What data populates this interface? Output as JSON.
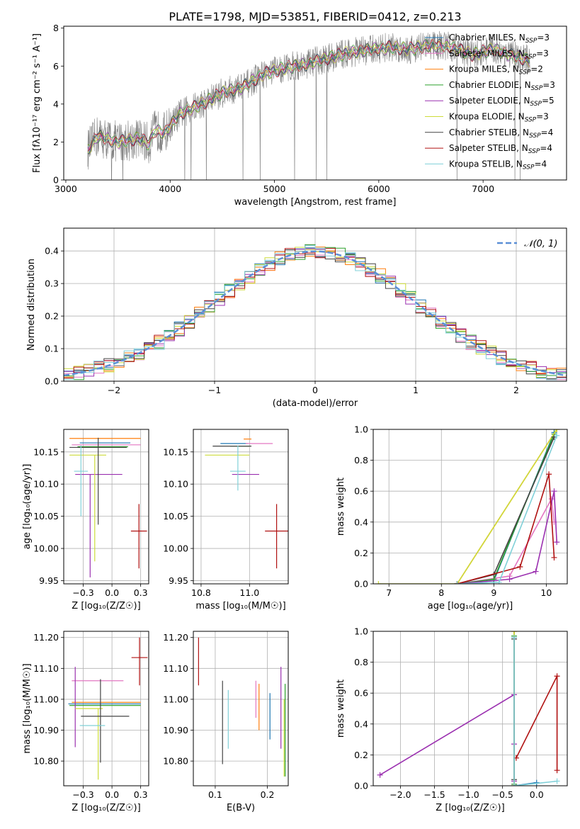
{
  "figure": {
    "title": "PLATE=1798, MJD=53851, FIBERID=0412, z=0.213"
  },
  "legend_entries": [
    {
      "imf": "Chabrier",
      "lib": "MILES",
      "n": "3",
      "color": "#1f77b4"
    },
    {
      "imf": "Salpeter",
      "lib": "MILES",
      "n": "3",
      "color": "#e377c2"
    },
    {
      "imf": "Kroupa",
      "lib": "MILES",
      "n": "2",
      "color": "#ff7f0e"
    },
    {
      "imf": "Chabrier",
      "lib": "ELODIE",
      "n": "3",
      "color": "#2ca02c"
    },
    {
      "imf": "Salpeter",
      "lib": "ELODIE",
      "n": "5",
      "color": "#9b30b0"
    },
    {
      "imf": "Kroupa",
      "lib": "ELODIE",
      "n": "3",
      "color": "#cddc39"
    },
    {
      "imf": "Chabrier",
      "lib": "STELIB",
      "n": "4",
      "color": "#444444"
    },
    {
      "imf": "Salpeter",
      "lib": "STELIB",
      "n": "4",
      "color": "#b01010"
    },
    {
      "imf": "Kroupa",
      "lib": "STELIB",
      "n": "4",
      "color": "#80d0d8"
    }
  ],
  "chart_data": [
    {
      "id": "spectrum",
      "type": "line",
      "xlabel": "wavelength [Angstrom, rest frame]",
      "ylabel": "Flux [fλ10⁻¹⁷ erg cm⁻² s⁻¹ A⁻¹]",
      "xlim": [
        2980,
        7800
      ],
      "ylim": [
        0,
        8.1
      ],
      "xticks": [
        3000,
        4000,
        5000,
        6000,
        7000
      ],
      "yticks": [
        0,
        2,
        4,
        6,
        8
      ],
      "data_color": "#808080",
      "data_range": [
        3210,
        7450
      ],
      "continuum_x": [
        3210,
        3300,
        3500,
        3700,
        3800,
        3850,
        3950,
        4100,
        4300,
        4500,
        4700,
        4900,
        5100,
        5300,
        5500,
        5700,
        5900,
        6100,
        6300,
        6500,
        6700,
        6900,
        7100,
        7300,
        7450
      ],
      "continuum_y": [
        1.6,
        2.3,
        2.0,
        2.2,
        1.9,
        2.6,
        2.5,
        3.5,
        4.0,
        4.6,
        4.9,
        5.6,
        5.9,
        6.1,
        6.4,
        6.7,
        6.85,
        7.0,
        6.9,
        7.1,
        7.0,
        6.6,
        6.9,
        6.5,
        6.3
      ]
    },
    {
      "id": "residuals",
      "type": "line",
      "xlabel": "(data-model)/error",
      "ylabel": "Normed distribution",
      "xlim": [
        -2.5,
        2.5
      ],
      "ylim": [
        0,
        0.47
      ],
      "xticks": [
        -2,
        -1,
        0,
        1,
        2
      ],
      "yticks": [
        0.0,
        0.1,
        0.2,
        0.3,
        0.4
      ],
      "gaussian_label": "𝒩(0, 1)",
      "gaussian_color": "#5b8fd6",
      "bin_width": 0.1
    },
    {
      "id": "age-vs-Z",
      "type": "scatter",
      "xlabel": "Z [log₁₀(Z/Z☉)]",
      "ylabel": "age  [log₁₀(age/yr)]",
      "xlim": [
        -0.42,
        0.32
      ],
      "ylim": [
        9.945,
        10.185
      ],
      "xticks": [
        -0.25,
        0.0,
        0.25
      ],
      "yticks": [
        9.95,
        10.0,
        10.05,
        10.1,
        10.15
      ],
      "points": [
        {
          "x": -0.0,
          "xerr": [
            0.28,
            0.16
          ],
          "y": 10.164,
          "yerr": [
            0,
            0
          ],
          "color": "#1f77b4"
        },
        {
          "x": -0.05,
          "xerr": [
            0.3,
            0.3
          ],
          "y": 10.161,
          "yerr": [
            0,
            0
          ],
          "color": "#e377c2"
        },
        {
          "x": -0.05,
          "xerr": [
            0.32,
            0.3
          ],
          "y": 10.171,
          "yerr": [
            0,
            0
          ],
          "color": "#ff7f0e"
        },
        {
          "x": -0.12,
          "xerr": [
            0.18,
            0.26
          ],
          "y": 10.158,
          "yerr": [
            0,
            0
          ],
          "color": "#2ca02c"
        },
        {
          "x": -0.19,
          "xerr": [
            0.13,
            0.28
          ],
          "y": 10.115,
          "yerr": [
            0.16,
            0
          ],
          "color": "#9b30b0"
        },
        {
          "x": -0.15,
          "xerr": [
            0.22,
            0.1
          ],
          "y": 10.145,
          "yerr": [
            0.165,
            0
          ],
          "color": "#cddc39"
        },
        {
          "x": -0.12,
          "xerr": [
            0.25,
            0.25
          ],
          "y": 10.157,
          "yerr": [
            0.12,
            0.015
          ],
          "color": "#444444"
        },
        {
          "x": 0.235,
          "xerr": [
            0.07,
            0.07
          ],
          "y": 10.027,
          "yerr": [
            0.058,
            0.042
          ],
          "color": "#b01010"
        },
        {
          "x": -0.27,
          "xerr": [
            0.06,
            0.06
          ],
          "y": 10.12,
          "yerr": [
            0.07,
            0.04
          ],
          "color": "#80d0d8"
        }
      ]
    },
    {
      "id": "age-vs-mass",
      "type": "scatter",
      "xlabel": "mass [log₁₀(M/M☉)]",
      "ylabel": "",
      "xlim": [
        10.71,
        11.2
      ],
      "ylim": [
        9.945,
        10.185
      ],
      "xticks": [
        10.75,
        11.0
      ],
      "yticks": [
        9.95,
        10.0,
        10.05,
        10.1,
        10.15
      ],
      "points": [
        {
          "x": 10.92,
          "xerr": [
            0.07,
            0.07
          ],
          "y": 10.163,
          "yerr": [
            0,
            0
          ],
          "color": "#1f77b4"
        },
        {
          "x": 11.05,
          "xerr": [
            0.07,
            0.07
          ],
          "y": 10.163,
          "yerr": [
            0,
            0
          ],
          "color": "#e377c2"
        },
        {
          "x": 10.99,
          "xerr": [
            0.02,
            0.02
          ],
          "y": 10.17,
          "yerr": [
            0,
            0
          ],
          "color": "#ff7f0e"
        },
        {
          "x": 10.95,
          "xerr": [
            0.05,
            0.05
          ],
          "y": 10.159,
          "yerr": [
            0,
            0
          ],
          "color": "#2ca02c"
        },
        {
          "x": 10.99,
          "xerr": [
            0.08,
            0.06
          ],
          "y": 10.115,
          "yerr": [
            0,
            0
          ],
          "color": "#9b30b0"
        },
        {
          "x": 10.9,
          "xerr": [
            0.13,
            0.1
          ],
          "y": 10.145,
          "yerr": [
            0,
            0
          ],
          "color": "#cddc39"
        },
        {
          "x": 10.92,
          "xerr": [
            0.11,
            0.09
          ],
          "y": 10.159,
          "yerr": [
            0,
            0
          ],
          "color": "#444444"
        },
        {
          "x": 11.14,
          "xerr": [
            0.06,
            0.06
          ],
          "y": 10.027,
          "yerr": [
            0.058,
            0.042
          ],
          "color": "#b01010"
        },
        {
          "x": 10.94,
          "xerr": [
            0.04,
            0.04
          ],
          "y": 10.12,
          "yerr": [
            0.03,
            0.04
          ],
          "color": "#80d0d8"
        }
      ]
    },
    {
      "id": "mass-weight-vs-age",
      "type": "line",
      "xlabel": "age  [log₁₀(age/yr)]",
      "ylabel": "mass weight",
      "xlim": [
        6.7,
        10.4
      ],
      "ylim": [
        0,
        1.0
      ],
      "xticks": [
        7,
        8,
        9,
        10
      ],
      "yticks": [
        0.0,
        0.2,
        0.4,
        0.6,
        0.8,
        1.0
      ],
      "series": [
        {
          "color": "#1f77b4",
          "x": [
            8.3,
            9.0,
            10.15
          ],
          "y": [
            0.0,
            0.02,
            0.98
          ]
        },
        {
          "color": "#e377c2",
          "x": [
            8.3,
            9.3,
            10.1,
            10.15
          ],
          "y": [
            0.0,
            0.05,
            0.55,
            0.4
          ]
        },
        {
          "color": "#ff7f0e",
          "x": [
            8.3,
            10.2
          ],
          "y": [
            0.0,
            1.0
          ]
        },
        {
          "color": "#2ca02c",
          "x": [
            8.3,
            9.0,
            10.15
          ],
          "y": [
            0.0,
            0.03,
            0.97
          ]
        },
        {
          "color": "#9b30b0",
          "x": [
            8.3,
            9.3,
            9.8,
            10.15,
            10.2
          ],
          "y": [
            0.0,
            0.03,
            0.08,
            0.6,
            0.27
          ]
        },
        {
          "color": "#cddc39",
          "x": [
            6.8,
            8.3,
            10.2
          ],
          "y": [
            0.0,
            0.0,
            1.0
          ]
        },
        {
          "color": "#444444",
          "x": [
            8.3,
            9.0,
            10.15
          ],
          "y": [
            0.0,
            0.06,
            0.95
          ]
        },
        {
          "color": "#b01010",
          "x": [
            8.3,
            9.5,
            10.05,
            10.15
          ],
          "y": [
            0.0,
            0.11,
            0.71,
            0.17
          ]
        },
        {
          "color": "#80d0d8",
          "x": [
            8.3,
            9.1,
            10.2
          ],
          "y": [
            0.0,
            0.01,
            0.96
          ]
        }
      ]
    },
    {
      "id": "mass-vs-Z",
      "type": "scatter",
      "xlabel": "Z [log₁₀(Z/Z☉)]",
      "ylabel": "mass [log₁₀(M/M☉)]",
      "xlim": [
        -0.42,
        0.32
      ],
      "ylim": [
        10.72,
        11.22
      ],
      "xticks": [
        -0.25,
        0.0,
        0.25
      ],
      "yticks": [
        10.8,
        10.9,
        11.0,
        11.1,
        11.2
      ],
      "points": [
        {
          "x": -0.05,
          "xerr": [
            0.33,
            0.3
          ],
          "y": 10.985,
          "yerr": [
            0,
            0
          ],
          "color": "#1f77b4"
        },
        {
          "x": -0.15,
          "xerr": [
            0.2,
            0.25
          ],
          "y": 11.06,
          "yerr": [
            0,
            0
          ],
          "color": "#e377c2"
        },
        {
          "x": -0.05,
          "xerr": [
            0.3,
            0.3
          ],
          "y": 10.99,
          "yerr": [
            0,
            0
          ],
          "color": "#ff7f0e"
        },
        {
          "x": -0.05,
          "xerr": [
            0.32,
            0.3
          ],
          "y": 10.98,
          "yerr": [
            0,
            0
          ],
          "color": "#2ca02c"
        },
        {
          "x": -0.32,
          "xerr": [
            0,
            0
          ],
          "y": 10.975,
          "yerr": [
            0.13,
            0.13
          ],
          "color": "#9b30b0"
        },
        {
          "x": -0.12,
          "xerr": [
            0.2,
            0.04
          ],
          "y": 10.97,
          "yerr": [
            0.23,
            0
          ],
          "color": "#cddc39"
        },
        {
          "x": -0.1,
          "xerr": [
            0.17,
            0.25
          ],
          "y": 10.945,
          "yerr": [
            0.15,
            0.12
          ],
          "color": "#444444"
        },
        {
          "x": 0.24,
          "xerr": [
            0.07,
            0.07
          ],
          "y": 11.135,
          "yerr": [
            0.09,
            0.065
          ],
          "color": "#b01010"
        },
        {
          "x": -0.18,
          "xerr": [
            0.1,
            0.12
          ],
          "y": 10.915,
          "yerr": [
            0,
            0
          ],
          "color": "#80d0d8"
        }
      ]
    },
    {
      "id": "mass-vs-EBV",
      "type": "scatter",
      "xlabel": "E(B-V)",
      "ylabel": "",
      "xlim": [
        0.058,
        0.24
      ],
      "ylim": [
        10.72,
        11.22
      ],
      "xticks": [
        0.1,
        0.2
      ],
      "yticks": [
        10.8,
        10.9,
        11.0,
        11.1,
        11.2
      ],
      "points": [
        {
          "x": 0.205,
          "y": 10.945,
          "yerr": [
            0.075,
            0.075
          ],
          "color": "#1f77b4"
        },
        {
          "x": 0.178,
          "y": 10.98,
          "yerr": [
            0.04,
            0.08
          ],
          "color": "#e377c2"
        },
        {
          "x": 0.184,
          "y": 10.95,
          "yerr": [
            0.05,
            0.1
          ],
          "color": "#ff7f0e"
        },
        {
          "x": 0.234,
          "y": 10.95,
          "yerr": [
            0.2,
            0.1
          ],
          "color": "#2ca02c"
        },
        {
          "x": 0.226,
          "y": 10.975,
          "yerr": [
            0.135,
            0.13
          ],
          "color": "#9b30b0"
        },
        {
          "x": 0.232,
          "y": 10.9,
          "yerr": [
            0.15,
            0.1
          ],
          "color": "#cddc39"
        },
        {
          "x": 0.114,
          "y": 10.925,
          "yerr": [
            0.135,
            0.135
          ],
          "color": "#444444"
        },
        {
          "x": 0.068,
          "y": 11.12,
          "yerr": [
            0.075,
            0.08
          ],
          "color": "#b01010"
        },
        {
          "x": 0.125,
          "y": 10.94,
          "yerr": [
            0.1,
            0.09
          ],
          "color": "#80d0d8"
        }
      ]
    },
    {
      "id": "mass-weight-vs-Z",
      "type": "line",
      "xlabel": "Z [log₁₀(Z/Z☉)]",
      "ylabel": "mass weight",
      "xlim": [
        -2.4,
        0.45
      ],
      "ylim": [
        0,
        1.0
      ],
      "xticks": [
        -2.0,
        -1.5,
        -1.0,
        -0.5,
        0.0
      ],
      "yticks": [
        0.0,
        0.2,
        0.4,
        0.6,
        0.8,
        1.0
      ],
      "series": [
        {
          "color": "#1f77b4",
          "x": [
            -0.33,
            -0.33,
            0.0
          ],
          "y": [
            0.97,
            0.0,
            0.02
          ]
        },
        {
          "color": "#e377c2",
          "x": [
            -0.33,
            -0.33
          ],
          "y": [
            0.96,
            0.01
          ]
        },
        {
          "color": "#ff7f0e",
          "x": [
            -0.33,
            -0.33
          ],
          "y": [
            1.0,
            0.0
          ]
        },
        {
          "color": "#2ca02c",
          "x": [
            -0.33,
            -0.33
          ],
          "y": [
            0.97,
            0.01
          ]
        },
        {
          "color": "#9b30b0",
          "x": [
            -2.3,
            -0.33,
            -0.33,
            -0.33
          ],
          "y": [
            0.07,
            0.59,
            0.27,
            0.03
          ]
        },
        {
          "color": "#cddc39",
          "x": [
            -0.33,
            -0.33
          ],
          "y": [
            1.0,
            0.0
          ]
        },
        {
          "color": "#444444",
          "x": [
            -0.33,
            -0.33
          ],
          "y": [
            0.95,
            0.04
          ]
        },
        {
          "color": "#b01010",
          "x": [
            -0.3,
            0.3,
            0.3
          ],
          "y": [
            0.18,
            0.71,
            0.1
          ]
        },
        {
          "color": "#80d0d8",
          "x": [
            -0.33,
            -0.33,
            0.3
          ],
          "y": [
            0.96,
            0.0,
            0.03
          ]
        }
      ]
    }
  ]
}
